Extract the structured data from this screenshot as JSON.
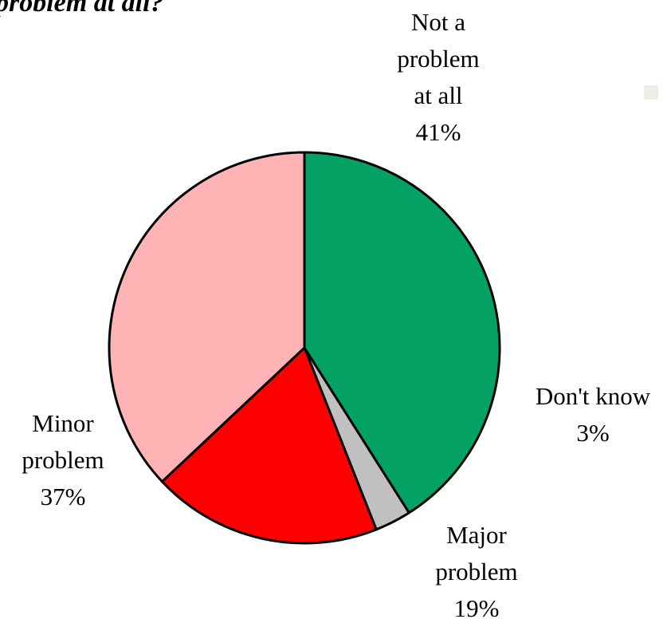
{
  "header": {
    "cut_title": "problem at all?"
  },
  "colors": {
    "background": "#ffffff",
    "outline": "#000000",
    "corner_marker": "#efede6"
  },
  "chart_data": {
    "type": "pie",
    "title": "",
    "start_angle_deg": 90,
    "direction": "clockwise",
    "slices": [
      {
        "lines": [
          "Not a",
          "problem",
          "at all",
          "41%"
        ],
        "value": 41,
        "color": "#03a264"
      },
      {
        "lines": [
          "Don't know",
          "3%"
        ],
        "value": 3,
        "color": "#c0c0c0"
      },
      {
        "lines": [
          "Major",
          "problem",
          "19%"
        ],
        "value": 19,
        "color": "#ff0000"
      },
      {
        "lines": [
          "Minor",
          "problem",
          "37%"
        ],
        "value": 37,
        "color": "#ffb3b5"
      }
    ]
  }
}
